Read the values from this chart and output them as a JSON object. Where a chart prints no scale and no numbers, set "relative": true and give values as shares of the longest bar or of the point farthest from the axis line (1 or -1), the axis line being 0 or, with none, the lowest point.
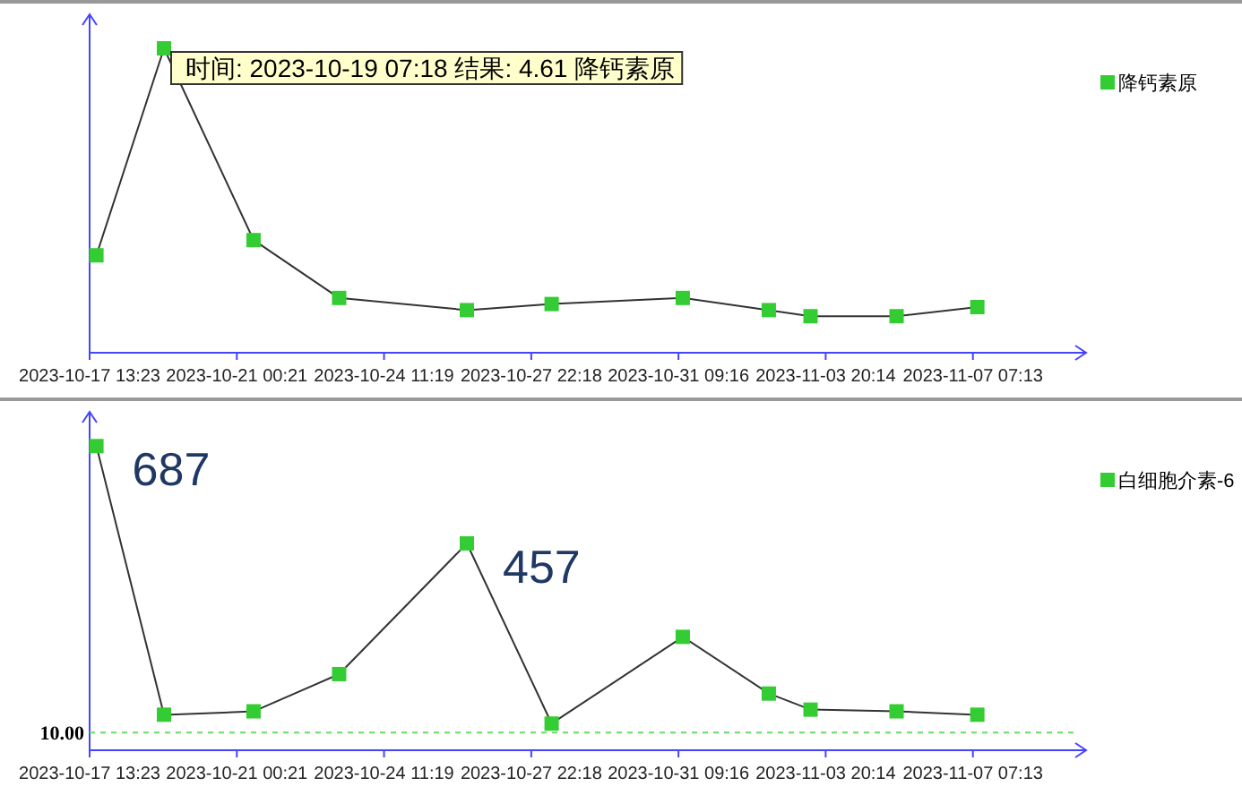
{
  "chart_data": [
    {
      "type": "line",
      "relative": true,
      "x": [
        "2023-10-17T17:13",
        "2023-10-19T07:18",
        "2023-10-21T09:47",
        "2023-10-23T10:01",
        "2023-10-26T10:01",
        "2023-10-28T09:47",
        "2023-10-31T11:42",
        "2023-11-02T12:11",
        "2023-11-03T11:42",
        "2023-11-05T12:11",
        "2023-11-07T09:42"
      ],
      "xlim": [
        "2023-10-17T13:23",
        "2023-11-09T23:00"
      ],
      "xticks": [
        {
          "value": "2023-10-17T13:23",
          "label": "2023-10-17 13:23"
        },
        {
          "value": "2023-10-21T00:21",
          "label": "2023-10-21 00:21"
        },
        {
          "value": "2023-10-24T11:19",
          "label": "2023-10-24 11:19"
        },
        {
          "value": "2023-10-27T22:18",
          "label": "2023-10-27 22:18"
        },
        {
          "value": "2023-10-31T09:16",
          "label": "2023-10-31 09:16"
        },
        {
          "value": "2023-11-03T20:14",
          "label": "2023-11-03 20:14"
        },
        {
          "value": "2023-11-07T07:13",
          "label": "2023-11-07 07:13"
        }
      ],
      "series": [
        {
          "name": "降钙素原",
          "color": "#33cc33",
          "values": [
            0.32,
            1,
            0.37,
            0.18,
            0.14,
            0.16,
            0.18,
            0.14,
            0.12,
            0.12,
            0.15
          ]
        }
      ],
      "annotations": [
        {
          "text": "时间: 2023-10-19 07:18  结果: 4.61   降钙素原",
          "x": "2023-10-19T07:18"
        }
      ],
      "marker": "square",
      "legend": "top right",
      "tick_labels": "x",
      "grid": false
    },
    {
      "type": "line",
      "x": [
        "2023-10-17T17:13",
        "2023-10-19T07:18",
        "2023-10-21T09:47",
        "2023-10-23T10:01",
        "2023-10-26T10:01",
        "2023-10-28T09:47",
        "2023-10-31T11:42",
        "2023-11-02T12:11",
        "2023-11-03T11:42",
        "2023-11-05T12:11",
        "2023-11-07T09:42"
      ],
      "xlim": [
        "2023-10-17T13:23",
        "2023-11-09T23:00"
      ],
      "xticks": [
        {
          "value": "2023-10-17T13:23",
          "label": "2023-10-17 13:23"
        },
        {
          "value": "2023-10-21T00:21",
          "label": "2023-10-21 00:21"
        },
        {
          "value": "2023-10-24T11:19",
          "label": "2023-10-24 11:19"
        },
        {
          "value": "2023-10-27T22:18",
          "label": "2023-10-27 22:18"
        },
        {
          "value": "2023-10-31T09:16",
          "label": "2023-10-31 09:16"
        },
        {
          "value": "2023-11-03T20:14",
          "label": "2023-11-03 20:14"
        },
        {
          "value": "2023-11-07T07:13",
          "label": "2023-11-07 07:13"
        }
      ],
      "ylim": [
        -32,
        768
      ],
      "series": [
        {
          "name": "白细胞介素-6",
          "color": "#33cc33",
          "values": [
            687,
            52,
            60,
            148,
            457,
            31,
            236,
            102,
            64,
            60,
            52
          ],
          "value_labels": [
            "687",
            null,
            null,
            null,
            "457",
            null,
            null,
            null,
            null,
            null,
            null
          ]
        }
      ],
      "ref_lines": [
        {
          "axis": "y",
          "value": 10,
          "label": "10.00",
          "color": "#66dd66",
          "line_style": "dashed"
        }
      ],
      "marker": "square",
      "legend": "top right",
      "tick_labels": "x",
      "grid": false
    }
  ]
}
